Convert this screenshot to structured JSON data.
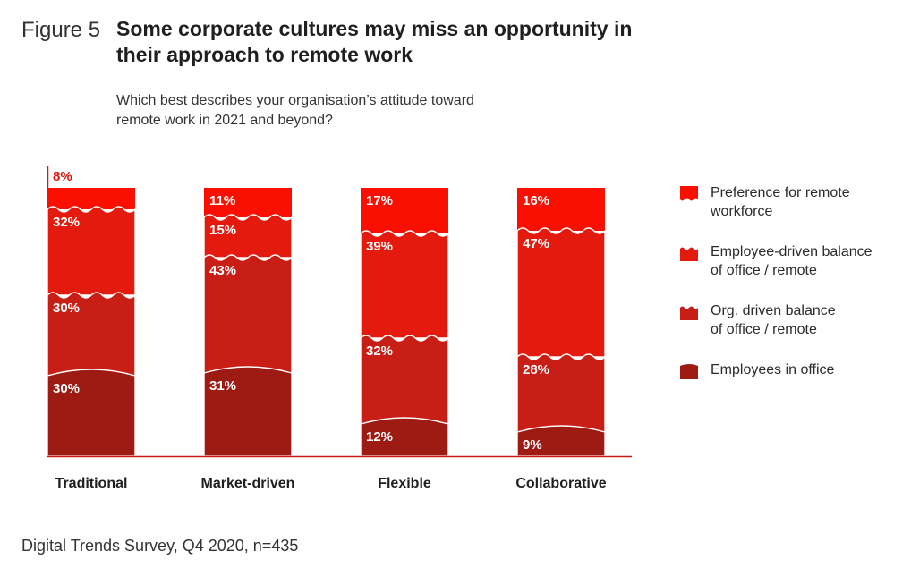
{
  "figure_label": "Figure 5",
  "title": "Some corporate cultures may miss an opportunity in their approach to remote work",
  "subtitle": "Which best describes your organisation’s attitude toward remote work in 2021 and beyond?",
  "source": "Digital Trends Survey, Q4 2020, n=435",
  "colors": {
    "preference_remote": "#fa0f00",
    "employee_driven": "#e31a0d",
    "org_driven": "#c81e16",
    "in_office": "#9e1b14"
  },
  "legend": [
    {
      "label": "Preference for remote workforce",
      "lines": [
        "Preference for remote",
        "workforce"
      ],
      "color": "#fa0f00"
    },
    {
      "label": "Employee-driven balance of office / remote",
      "lines": [
        "Employee-driven balance",
        "of office / remote"
      ],
      "color": "#e31a0d"
    },
    {
      "label": "Org. driven balance of office / remote",
      "lines": [
        "Org. driven balance",
        "of office / remote"
      ],
      "color": "#c81e16"
    },
    {
      "label": "Employees in office",
      "lines": [
        "Employees in office"
      ],
      "color": "#9e1b14"
    }
  ],
  "chart_data": {
    "type": "bar",
    "stacked": true,
    "categories": [
      "Traditional",
      "Market-driven",
      "Flexible",
      "Collaborative"
    ],
    "series": [
      {
        "name": "Employees in office",
        "values": [
          30,
          31,
          12,
          9
        ]
      },
      {
        "name": "Org. driven balance of office / remote",
        "values": [
          30,
          43,
          32,
          28
        ]
      },
      {
        "name": "Employee-driven balance of office / remote",
        "values": [
          32,
          15,
          39,
          47
        ]
      },
      {
        "name": "Preference for remote workforce",
        "values": [
          8,
          11,
          17,
          16
        ]
      }
    ],
    "value_labels": [
      [
        "30%",
        "31%",
        "12%",
        "9%"
      ],
      [
        "30%",
        "43%",
        "32%",
        "28%"
      ],
      [
        "32%",
        "15%",
        "39%",
        "47%"
      ],
      [
        "8%",
        "11%",
        "17%",
        "16%"
      ]
    ],
    "ylim": [
      0,
      100
    ],
    "legend_position": "right"
  }
}
